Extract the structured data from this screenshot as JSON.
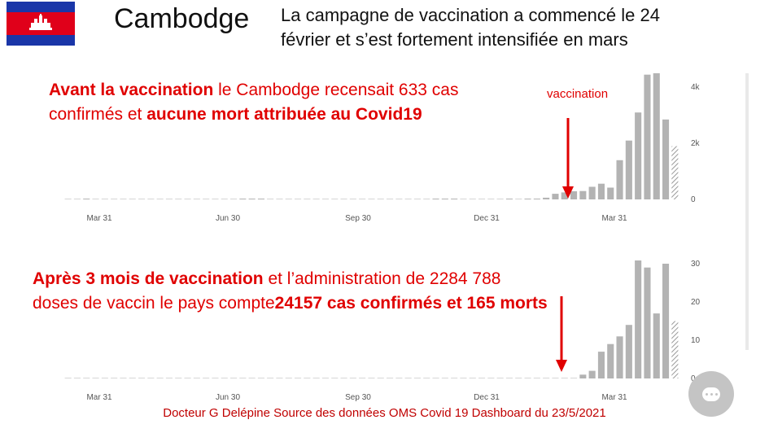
{
  "header": {
    "country": "Cambodge",
    "subtitle_line1": "La campagne de vaccination a commencé le 24",
    "subtitle_line2": "février et s’est fortement intensifiée en mars",
    "flag_icon": "cambodia-flag-icon"
  },
  "panel1": {
    "text_bold1": "Avant la vaccination",
    "text_normal1": " le Cambodge recensait 633 cas",
    "text_normal2": "confirmés et ",
    "text_bold2": "aucune mort attribuée au Covid19",
    "annotation": "vaccination"
  },
  "panel2": {
    "text_bold1": "Après 3 mois de vaccination",
    "text_normal1": " et l’administration de 2",
    "text_normal1b": "284 788",
    "text_normal2": "doses de vaccin le pays compte",
    "text_bold2": "24157 cas confirmés et 165 morts"
  },
  "footer": "Docteur G Delépine Source des données OMS Covid 19 Dashboard du  23/5/2021",
  "colors": {
    "accent_red": "#e00000",
    "bar": "#b3b3b3",
    "axis_text": "#555555"
  },
  "chart_data": [
    {
      "type": "bar",
      "title": "",
      "x_tick_labels": [
        "Mar 31",
        "Jun 30",
        "Sep 30",
        "Dec 31",
        "Mar 31"
      ],
      "y_tick_labels": [
        "0",
        "2k",
        "4k"
      ],
      "ylim": [
        0,
        4500
      ],
      "grid": false,
      "values": [
        2,
        5,
        30,
        8,
        3,
        2,
        1,
        1,
        1,
        1,
        1,
        1,
        1,
        1,
        1,
        1,
        2,
        3,
        5,
        18,
        12,
        30,
        8,
        6,
        4,
        3,
        2,
        2,
        2,
        1,
        1,
        1,
        1,
        1,
        1,
        1,
        1,
        1,
        2,
        4,
        12,
        25,
        20,
        8,
        5,
        3,
        2,
        4,
        15,
        8,
        10,
        25,
        60,
        200,
        250,
        290,
        300,
        450,
        560,
        420,
        1400,
        2100,
        3100,
        4450,
        4650,
        2850,
        1900
      ],
      "last_bar_partial": true
    },
    {
      "type": "bar",
      "title": "",
      "x_tick_labels": [
        "Mar 31",
        "Jun 30",
        "Sep 30",
        "Dec 31",
        "Mar 31"
      ],
      "y_tick_labels": [
        "0",
        "10",
        "20",
        "30"
      ],
      "ylim": [
        0,
        30
      ],
      "grid": false,
      "values": [
        0,
        0,
        0,
        0,
        0,
        0,
        0,
        0,
        0,
        0,
        0,
        0,
        0,
        0,
        0,
        0,
        0,
        0,
        0,
        0,
        0,
        0,
        0,
        0,
        0,
        0,
        0,
        0,
        0,
        0,
        0,
        0,
        0,
        0,
        0,
        0,
        0,
        0,
        0,
        0,
        0,
        0,
        0,
        0,
        0,
        0,
        0,
        0,
        0,
        0,
        0,
        0,
        0,
        0,
        0,
        0,
        1,
        2,
        7,
        9,
        11,
        14,
        31,
        29,
        17,
        30,
        15
      ],
      "last_bar_partial": true
    }
  ]
}
